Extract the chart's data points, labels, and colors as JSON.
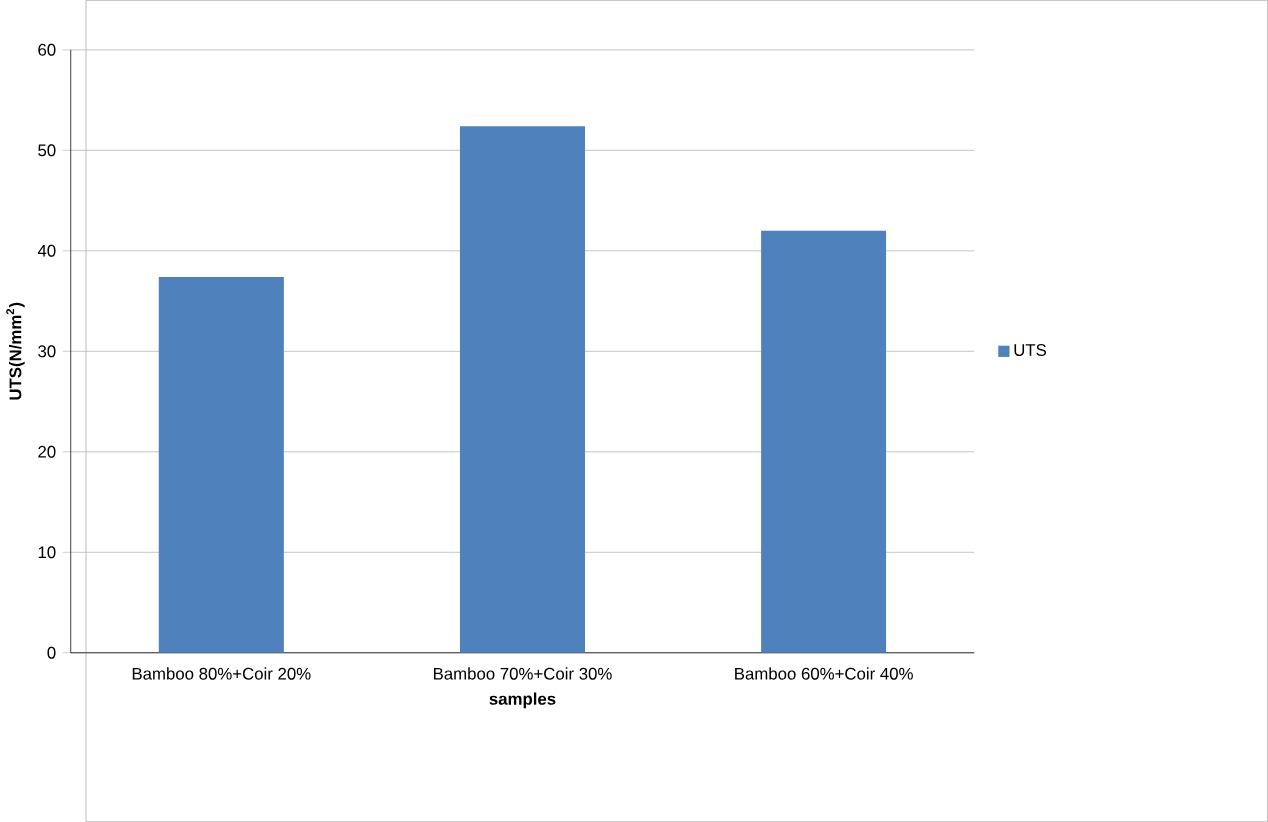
{
  "chart_data": {
    "type": "bar",
    "xlabel": "samples",
    "ylabel": "UTS(N/mm$^{2}$)",
    "categories": [
      "Bamboo 80%+Coir 20%",
      "Bamboo 70%+Coir 30%",
      "Bamboo 60%+Coir 40%"
    ],
    "series": [
      {
        "name": "UTS",
        "color": "#4f81bd",
        "values": [
          37.4,
          52.4,
          42
        ]
      }
    ],
    "ylim": [
      0,
      60
    ],
    "yticks": [
      0,
      10,
      20,
      30,
      40,
      50,
      60
    ],
    "grid": "y",
    "legend": "right"
  }
}
